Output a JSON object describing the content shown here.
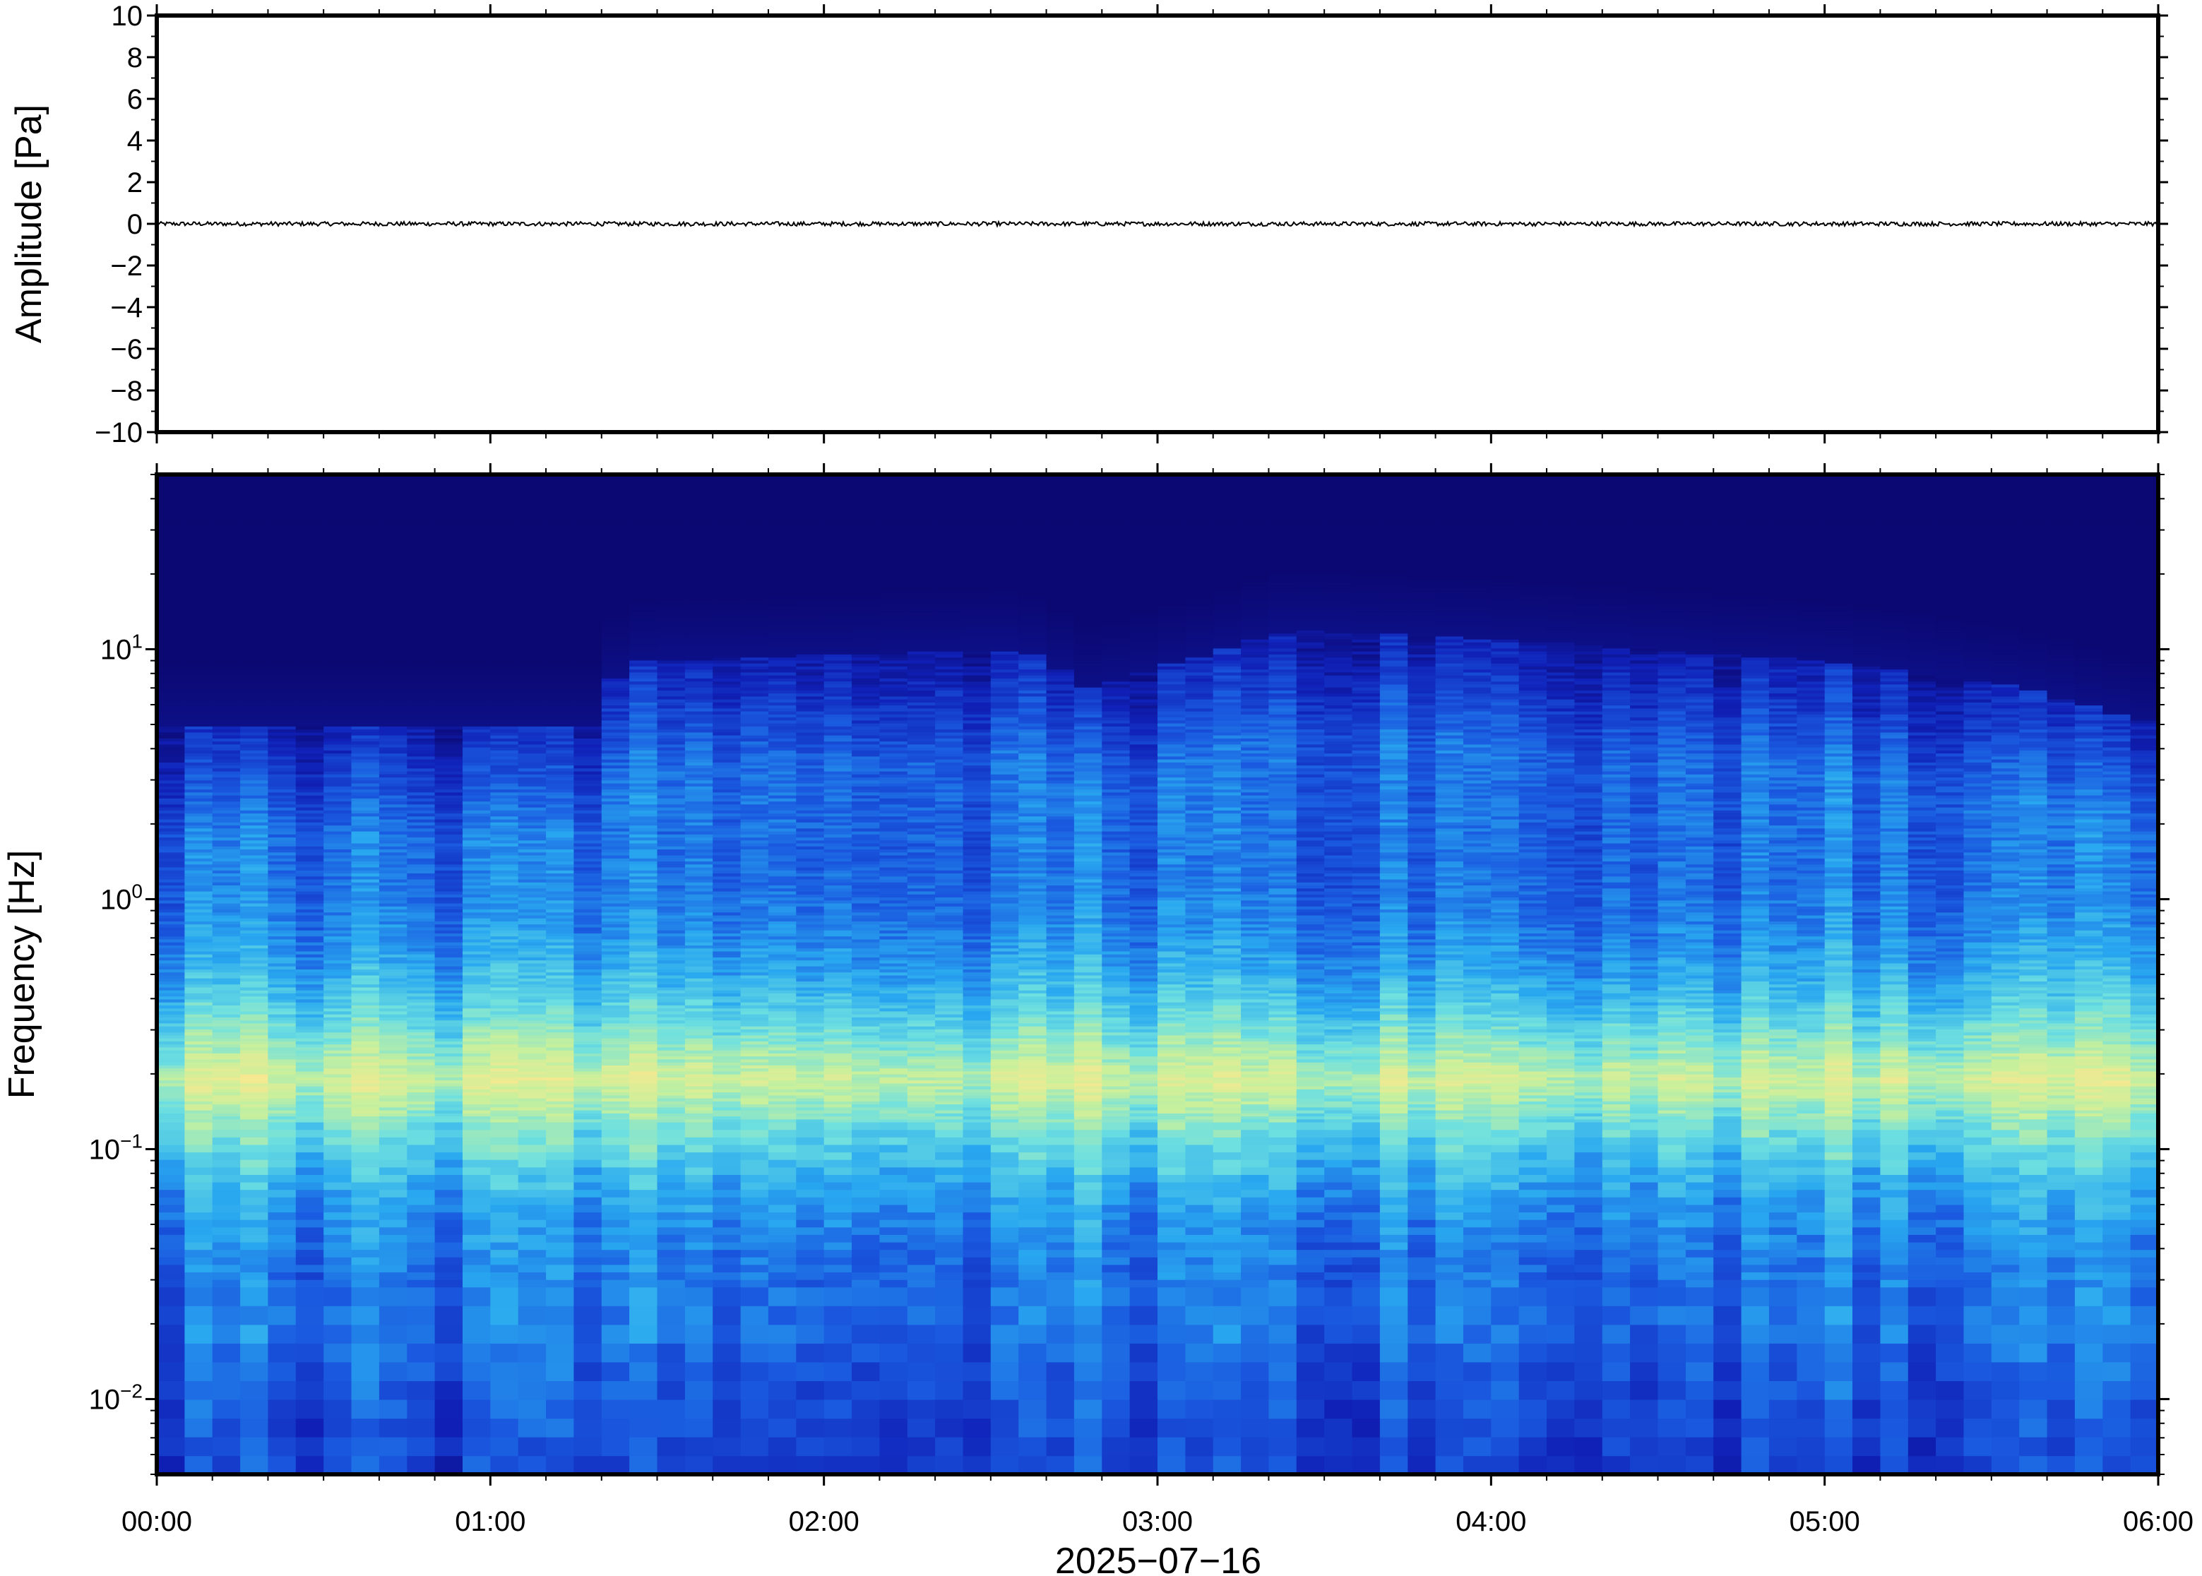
{
  "chart_data": [
    {
      "type": "line",
      "ylabel": "Amplitude [Pa]",
      "ylim": [
        -10,
        10
      ],
      "yticks": [
        10,
        8,
        6,
        4,
        2,
        0,
        -2,
        -4,
        -6,
        -8,
        -10
      ],
      "ytick_labels": [
        "10",
        "8",
        "6",
        "4",
        "2",
        "0",
        "−2",
        "−4",
        "−6",
        "−8",
        "−10"
      ],
      "xlim": [
        "00:00",
        "06:00"
      ],
      "series": [
        {
          "values_summary": "near-zero noise trace",
          "mean": 0,
          "approx_peak": 0.1,
          "color": "#000000"
        }
      ]
    },
    {
      "type": "heatmap",
      "ylabel": "Frequency [Hz]",
      "yscale": "log",
      "ylim": [
        0.005,
        50
      ],
      "yticks": [
        10,
        1,
        0.1,
        0.01
      ],
      "ytick_labels": [
        {
          "base": "10",
          "exp": "1"
        },
        {
          "base": "10",
          "exp": "0"
        },
        {
          "base": "10",
          "exp": "−1"
        },
        {
          "base": "10",
          "exp": "−2"
        }
      ],
      "x_tick_labels": [
        "00:00",
        "01:00",
        "02:00",
        "03:00",
        "04:00",
        "05:00",
        "06:00"
      ],
      "xlabel": "2025−07−16",
      "colormap": [
        "#0b0872",
        "#1021b8",
        "#1a5ae0",
        "#29a8f0",
        "#6ee0e0",
        "#c8f09c",
        "#f8e890",
        "#f8b070"
      ],
      "peak_band_hz": [
        0.12,
        0.3
      ],
      "peak_color": "#f8c880",
      "upper_energy_cutoff_hz_profile": {
        "hours": [
          0,
          1.3,
          1.4,
          2.6,
          2.8,
          3.4,
          4.0,
          5.0,
          5.6,
          6.0
        ],
        "cutoff_hz": [
          5,
          5,
          9,
          10,
          7,
          12,
          11,
          9,
          7,
          5
        ]
      }
    }
  ]
}
